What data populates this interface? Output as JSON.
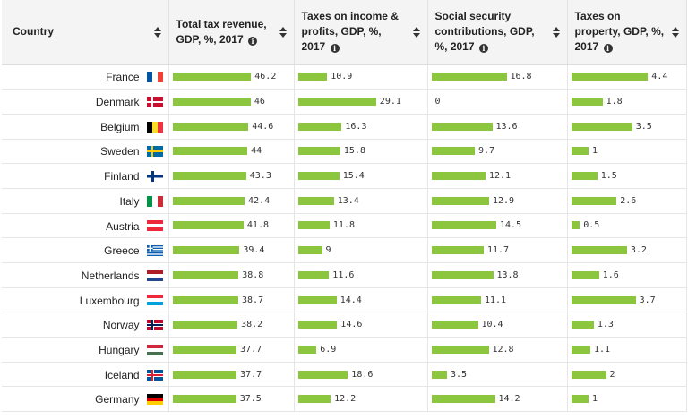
{
  "columns": [
    {
      "line1": "Country",
      "line2": "",
      "line3": ""
    },
    {
      "line1": "Total tax revenue,",
      "line2": "GDP, %, 2017",
      "line3": ""
    },
    {
      "line1": "Taxes on income &",
      "line2": "profits, GDP, %,",
      "line3": "2017"
    },
    {
      "line1": "Social security",
      "line2": "contributions, GDP,",
      "line3": "%, 2017"
    },
    {
      "line1": "Taxes on",
      "line2": "property, GDP, %,",
      "line3": "2017"
    }
  ],
  "bar_color": "#8cc63f",
  "rows": [
    {
      "country": "France",
      "flag": "france-flag",
      "total": "46.2",
      "income": "10.9",
      "social": "16.8",
      "property": "4.4"
    },
    {
      "country": "Denmark",
      "flag": "denmark-flag",
      "total": "46",
      "income": "29.1",
      "social": "0",
      "property": "1.8"
    },
    {
      "country": "Belgium",
      "flag": "belgium-flag",
      "total": "44.6",
      "income": "16.3",
      "social": "13.6",
      "property": "3.5"
    },
    {
      "country": "Sweden",
      "flag": "sweden-flag",
      "total": "44",
      "income": "15.8",
      "social": "9.7",
      "property": "1"
    },
    {
      "country": "Finland",
      "flag": "finland-flag",
      "total": "43.3",
      "income": "15.4",
      "social": "12.1",
      "property": "1.5"
    },
    {
      "country": "Italy",
      "flag": "italy-flag",
      "total": "42.4",
      "income": "13.4",
      "social": "12.9",
      "property": "2.6"
    },
    {
      "country": "Austria",
      "flag": "austria-flag",
      "total": "41.8",
      "income": "11.8",
      "social": "14.5",
      "property": "0.5"
    },
    {
      "country": "Greece",
      "flag": "greece-flag",
      "total": "39.4",
      "income": "9",
      "social": "11.7",
      "property": "3.2"
    },
    {
      "country": "Netherlands",
      "flag": "netherlands-flag",
      "total": "38.8",
      "income": "11.6",
      "social": "13.8",
      "property": "1.6"
    },
    {
      "country": "Luxembourg",
      "flag": "luxembourg-flag",
      "total": "38.7",
      "income": "14.4",
      "social": "11.1",
      "property": "3.7"
    },
    {
      "country": "Norway",
      "flag": "norway-flag",
      "total": "38.2",
      "income": "14.6",
      "social": "10.4",
      "property": "1.3"
    },
    {
      "country": "Hungary",
      "flag": "hungary-flag",
      "total": "37.7",
      "income": "6.9",
      "social": "12.8",
      "property": "1.1"
    },
    {
      "country": "Iceland",
      "flag": "iceland-flag",
      "total": "37.7",
      "income": "18.6",
      "social": "3.5",
      "property": "2"
    },
    {
      "country": "Germany",
      "flag": "germany-flag",
      "total": "37.5",
      "income": "12.2",
      "social": "14.2",
      "property": "1"
    }
  ]
}
